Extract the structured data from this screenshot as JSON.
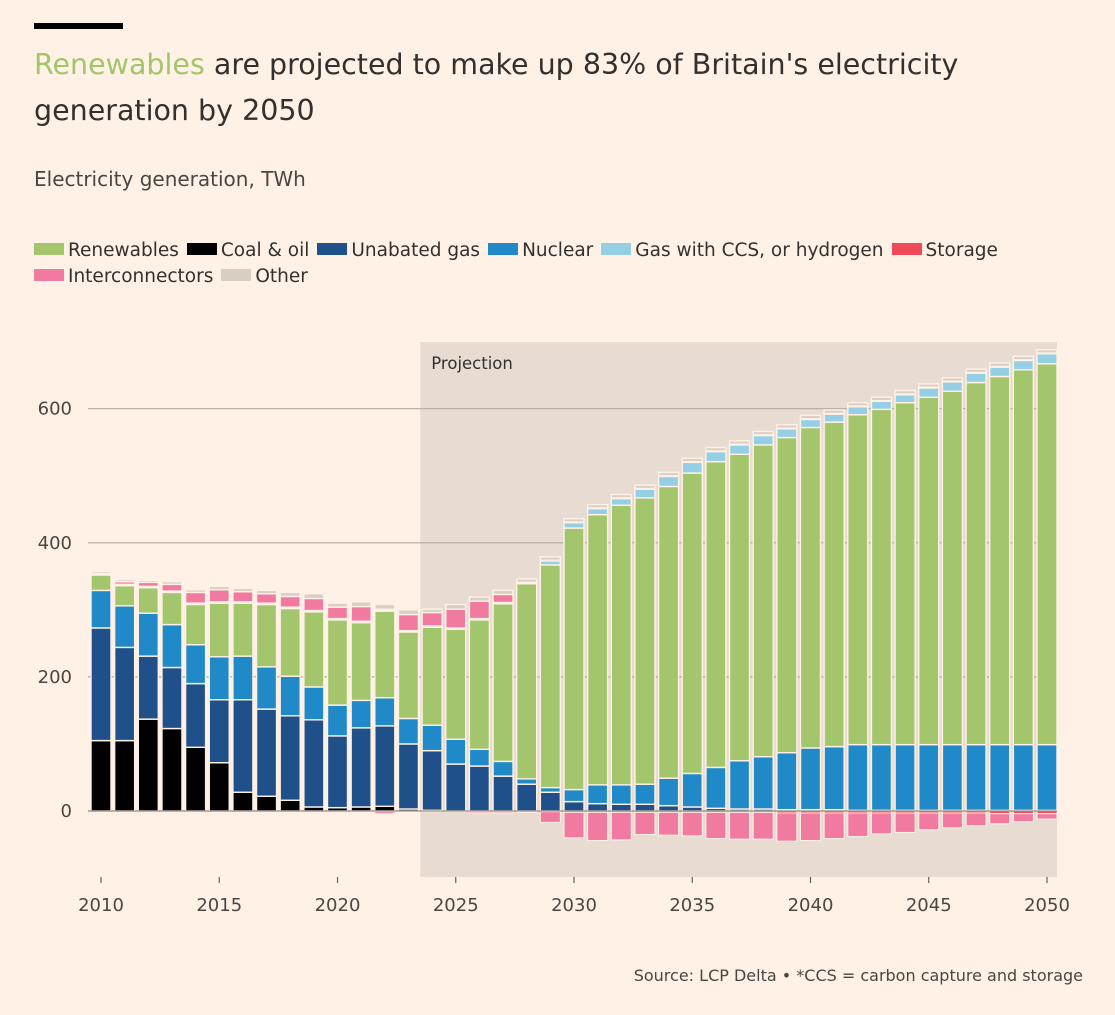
{
  "title": {
    "highlight": "Renewables",
    "rest": " are projected to make up 83% of Britain's electricity generation by 2050"
  },
  "subtitle": "Electricity generation, TWh",
  "source": "Source: LCP Delta • *CCS = carbon capture and storage",
  "colors": {
    "renewables": "#A3C56B",
    "coal_oil": "#000000",
    "unabated_gas": "#20508A",
    "nuclear": "#208AC8",
    "gas_ccs_hydrogen": "#94CFE6",
    "storage": "#F04A5A",
    "interconnectors": "#F07AA0",
    "other": "#D9CEC3",
    "projection_band": "#E8DCD2",
    "grid": "#B3A9A0",
    "axis_text": "#4A4642"
  },
  "legend": [
    {
      "key": "renewables",
      "label": "Renewables"
    },
    {
      "key": "coal_oil",
      "label": "Coal & oil"
    },
    {
      "key": "unabated_gas",
      "label": "Unabated gas"
    },
    {
      "key": "nuclear",
      "label": "Nuclear"
    },
    {
      "key": "gas_ccs_hydrogen",
      "label": "Gas with CCS, or hydrogen"
    },
    {
      "key": "storage",
      "label": "Storage"
    },
    {
      "key": "interconnectors",
      "label": "Interconnectors"
    },
    {
      "key": "other",
      "label": "Other"
    }
  ],
  "chart_data": {
    "type": "bar",
    "stacked": true,
    "title": "Renewables are projected to make up 83% of Britain's electricity generation by 2050",
    "ylabel": "Electricity generation, TWh",
    "ylim": [
      -95,
      700
    ],
    "yticks": [
      0,
      200,
      400,
      600
    ],
    "xticks": [
      2010,
      2015,
      2020,
      2025,
      2030,
      2035,
      2040,
      2045,
      2050
    ],
    "projection_start": 2023.5,
    "projection_label": "Projection",
    "categories": [
      2010,
      2011,
      2012,
      2013,
      2014,
      2015,
      2016,
      2017,
      2018,
      2019,
      2020,
      2021,
      2022,
      2023,
      2024,
      2025,
      2026,
      2027,
      2028,
      2029,
      2030,
      2031,
      2032,
      2033,
      2034,
      2035,
      2036,
      2037,
      2038,
      2039,
      2040,
      2041,
      2042,
      2043,
      2044,
      2045,
      2046,
      2047,
      2048,
      2049,
      2050
    ],
    "series": [
      {
        "key": "coal_oil",
        "name": "Coal & oil",
        "values": [
          105,
          105,
          137,
          123,
          95,
          72,
          28,
          22,
          16,
          6,
          5,
          6,
          7,
          3,
          1,
          0,
          0,
          0,
          0,
          0,
          0,
          0,
          0,
          0,
          0,
          0,
          0,
          0,
          0,
          0,
          0,
          0,
          0,
          0,
          0,
          0,
          0,
          0,
          0,
          0,
          0
        ]
      },
      {
        "key": "unabated_gas",
        "name": "Unabated gas",
        "values": [
          168,
          139,
          94,
          91,
          95,
          94,
          138,
          130,
          126,
          130,
          107,
          118,
          120,
          97,
          89,
          70,
          67,
          52,
          40,
          28,
          14,
          11,
          10,
          10,
          8,
          6,
          4,
          3,
          3,
          2,
          2,
          2,
          1,
          1,
          1,
          1,
          1,
          1,
          1,
          1,
          1
        ]
      },
      {
        "key": "nuclear",
        "name": "Nuclear",
        "values": [
          56,
          62,
          64,
          64,
          58,
          64,
          65,
          63,
          59,
          49,
          46,
          41,
          42,
          38,
          38,
          37,
          25,
          22,
          8,
          7,
          18,
          28,
          29,
          30,
          41,
          50,
          61,
          72,
          78,
          85,
          92,
          94,
          98,
          98,
          98,
          98,
          98,
          98,
          98,
          98,
          98
        ]
      },
      {
        "key": "renewables",
        "name": "Renewables",
        "values": [
          23,
          30,
          38,
          48,
          60,
          80,
          79,
          93,
          101,
          112,
          127,
          116,
          129,
          129,
          146,
          164,
          193,
          235,
          291,
          332,
          390,
          403,
          417,
          427,
          435,
          448,
          456,
          457,
          465,
          470,
          478,
          484,
          492,
          500,
          510,
          518,
          527,
          540,
          549,
          559,
          568
        ]
      },
      {
        "key": "gas_ccs_hydrogen",
        "name": "Gas with CCS, or hydrogen",
        "values": [
          0,
          0,
          0,
          0,
          0,
          0,
          0,
          0,
          0,
          0,
          0,
          0,
          0,
          0,
          0,
          0,
          0,
          0,
          0,
          6,
          8,
          9,
          10,
          13,
          15,
          16,
          15,
          14,
          14,
          13,
          12,
          12,
          12,
          12,
          12,
          14,
          14,
          14,
          14,
          14,
          15
        ]
      },
      {
        "key": "storage",
        "name": "Storage",
        "values": [
          2,
          2,
          2,
          2,
          2,
          2,
          2,
          2,
          2,
          2,
          2,
          2,
          2,
          2,
          2,
          2,
          2,
          2,
          2,
          1,
          1,
          1,
          1,
          1,
          1,
          1,
          1,
          1,
          1,
          1,
          1,
          1,
          1,
          1,
          1,
          1,
          1,
          1,
          1,
          1,
          1
        ]
      },
      {
        "key": "interconnectors",
        "name": "Interconnectors",
        "values": [
          0,
          4,
          6,
          10,
          16,
          18,
          15,
          14,
          16,
          18,
          17,
          22,
          1,
          24,
          20,
          28,
          26,
          12,
          0,
          0,
          0,
          0,
          0,
          0,
          0,
          0,
          0,
          0,
          0,
          0,
          0,
          0,
          0,
          0,
          0,
          0,
          0,
          0,
          0,
          0,
          0
        ]
      },
      {
        "key": "other",
        "name": "Other",
        "values": [
          3,
          3,
          3,
          4,
          4,
          5,
          5,
          5,
          6,
          7,
          6,
          7,
          7,
          7,
          5,
          7,
          6,
          6,
          5,
          5,
          5,
          5,
          5,
          5,
          5,
          5,
          5,
          5,
          5,
          5,
          5,
          5,
          5,
          5,
          5,
          5,
          5,
          5,
          5,
          5,
          5
        ]
      },
      {
        "key": "interconnectors_neg",
        "name": "Interconnectors (net imports negative)",
        "values": [
          0,
          0,
          0,
          0,
          0,
          0,
          0,
          0,
          0,
          0,
          0,
          -1,
          -3,
          0,
          0,
          0,
          -2,
          -2,
          -1,
          -16,
          -38,
          -42,
          -41,
          -33,
          -34,
          -35,
          -39,
          -40,
          -40,
          -42,
          -41,
          -38,
          -35,
          -31,
          -29,
          -25,
          -22,
          -19,
          -15,
          -12,
          -8
        ]
      },
      {
        "key": "storage_neg",
        "name": "Storage (charging negative)",
        "values": [
          0,
          0,
          0,
          0,
          0,
          0,
          0,
          0,
          0,
          0,
          -1,
          -1,
          -1,
          -1,
          -1,
          -1,
          -1,
          -1,
          -1,
          -1,
          -2,
          -2,
          -2,
          -2,
          -2,
          -2,
          -2,
          -2,
          -2,
          -3,
          -3,
          -3,
          -3,
          -3,
          -3,
          -3,
          -3,
          -3,
          -4,
          -4,
          -4
        ]
      }
    ]
  }
}
